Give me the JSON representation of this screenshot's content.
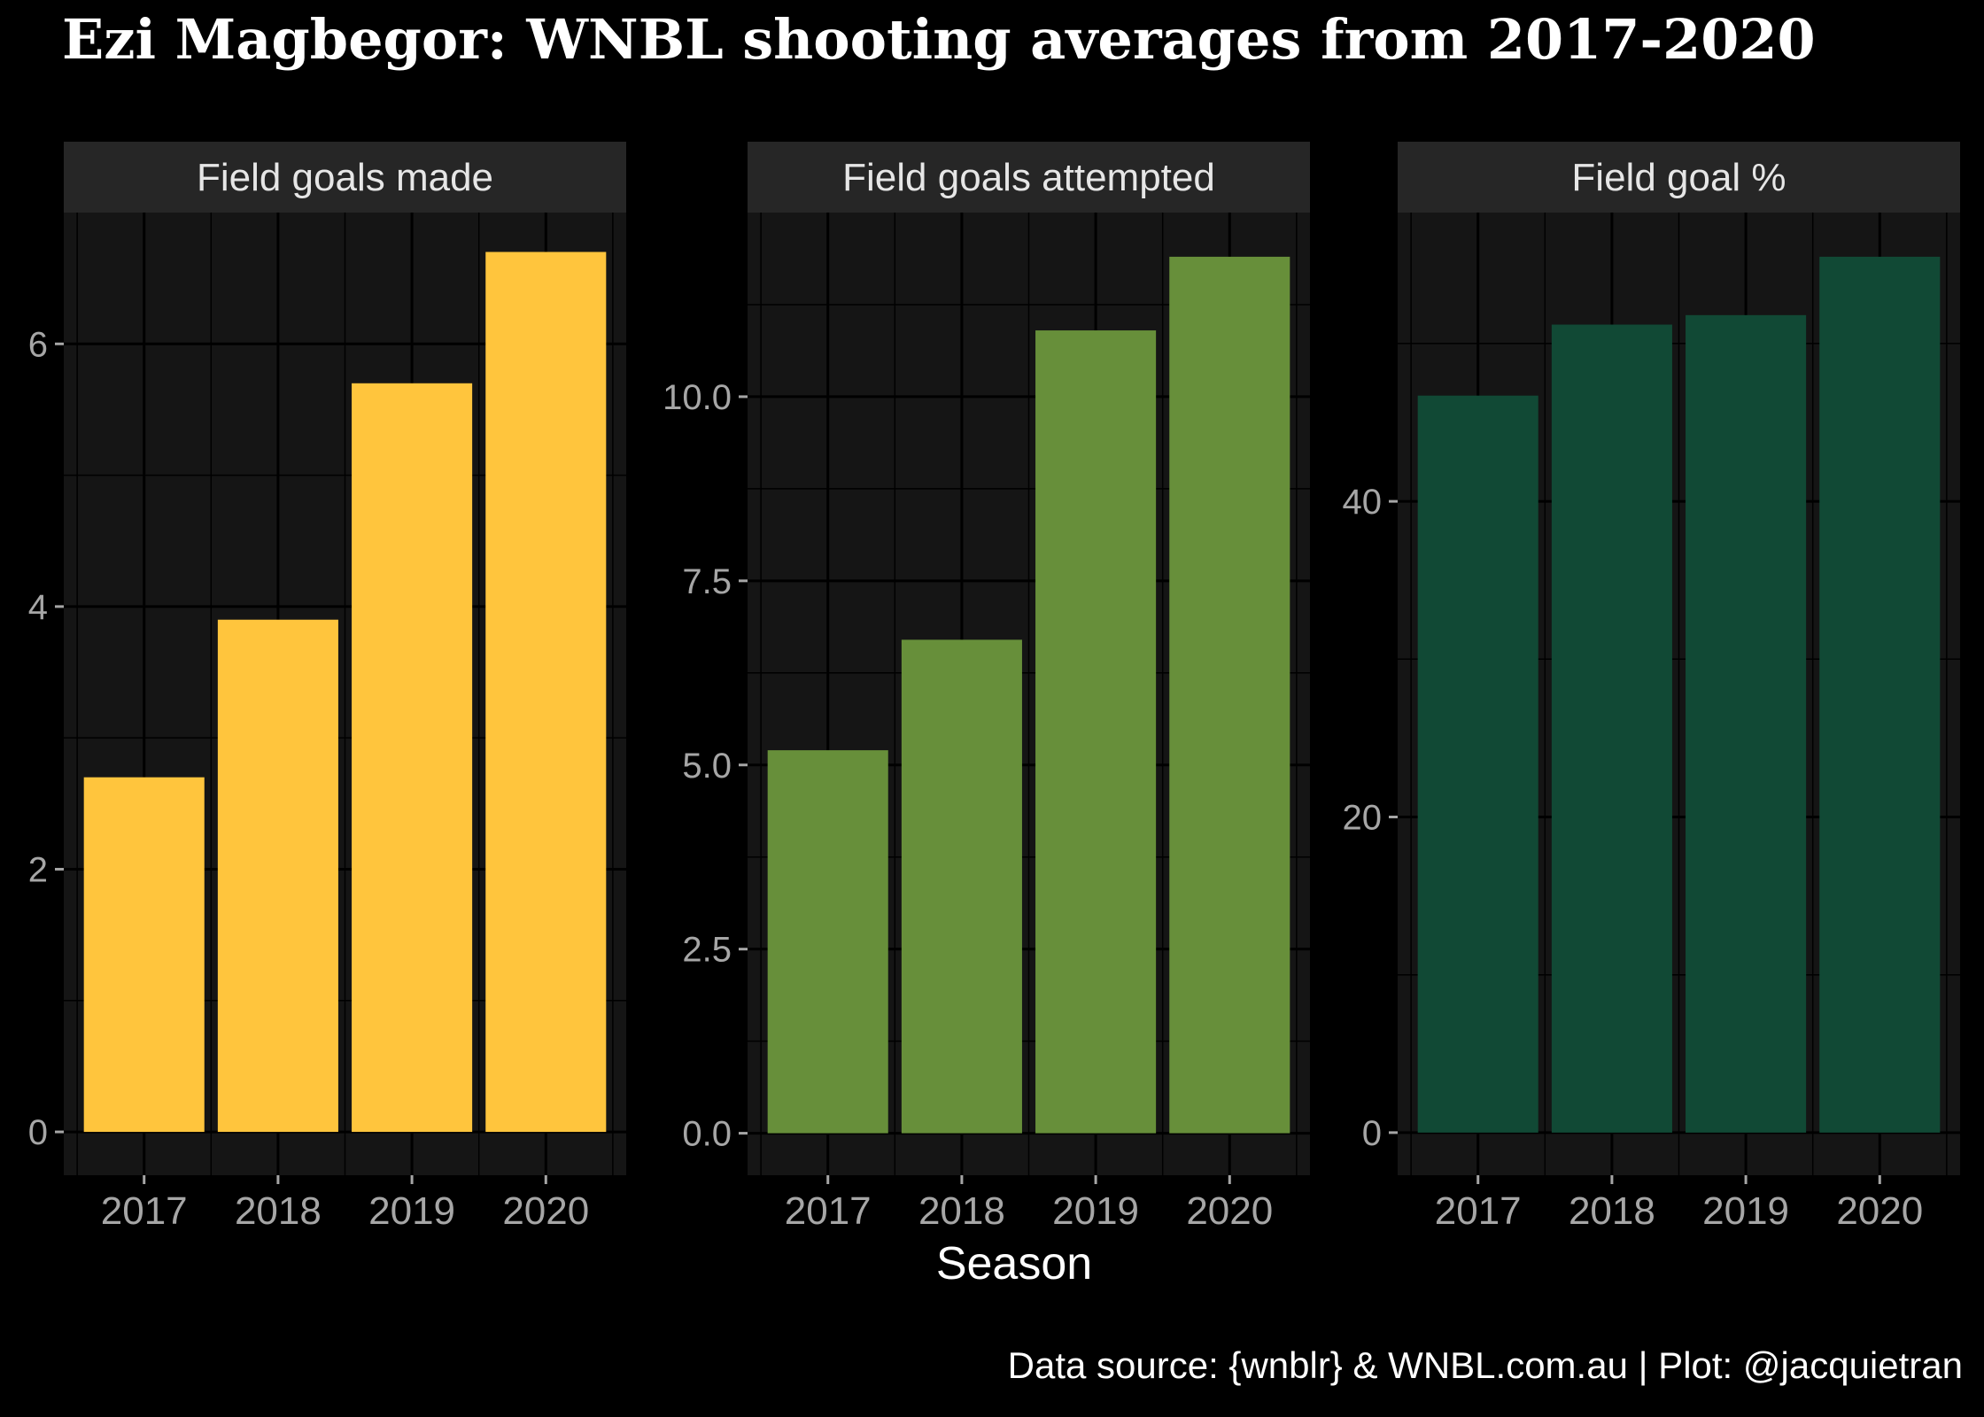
{
  "title": "Ezi Magbegor: WNBL shooting averages from 2017-2020",
  "xlabel": "Season",
  "caption": "Data source: {wnblr} & WNBL.com.au | Plot: @jacquietran",
  "colors": {
    "background": "#000000",
    "panel": "#151515",
    "strip": "#262626",
    "grid": "#000000",
    "tick_label": "#a6a6a6"
  },
  "chart_data": [
    {
      "type": "bar",
      "facet_label": "Field goals made",
      "categories": [
        "2017",
        "2018",
        "2019",
        "2020"
      ],
      "values": [
        2.7,
        3.9,
        5.7,
        6.7
      ],
      "ylim": [
        -0.33,
        7.0
      ],
      "yticks": [
        0,
        2,
        4,
        6
      ],
      "ytick_labels": [
        "0",
        "2",
        "4",
        "6"
      ],
      "color": "#ffc53d",
      "grid": true
    },
    {
      "type": "bar",
      "facet_label": "Field goals attempted",
      "categories": [
        "2017",
        "2018",
        "2019",
        "2020"
      ],
      "values": [
        5.2,
        6.7,
        10.9,
        11.9
      ],
      "ylim": [
        -0.57,
        12.5
      ],
      "yticks": [
        0,
        2.5,
        5,
        7.5,
        10
      ],
      "ytick_labels": [
        "0.0",
        "2.5",
        "5.0",
        "7.5",
        "10.0"
      ],
      "color": "#678f3a",
      "grid": true
    },
    {
      "type": "bar",
      "facet_label": "Field goal %",
      "categories": [
        "2017",
        "2018",
        "2019",
        "2020"
      ],
      "values": [
        46.7,
        51.2,
        51.8,
        55.5
      ],
      "ylim": [
        -2.7,
        58.3
      ],
      "yticks": [
        0,
        20,
        40
      ],
      "ytick_labels": [
        "0",
        "20",
        "40"
      ],
      "color": "#114935",
      "grid": true
    }
  ]
}
